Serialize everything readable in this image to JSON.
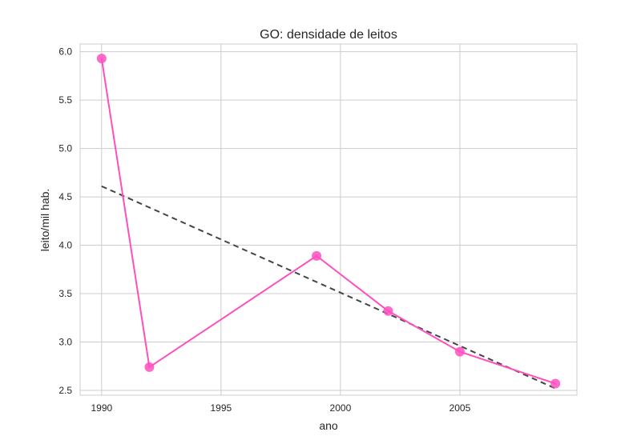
{
  "chart_data": {
    "type": "line",
    "title": "GO: densidade de leitos",
    "xlabel": "ano",
    "ylabel": "leito/mil hab.",
    "xlim": [
      1989.1,
      2009.9
    ],
    "ylim": [
      2.45,
      6.08
    ],
    "x_ticks": [
      1990,
      1995,
      2000,
      2005
    ],
    "y_ticks": [
      2.5,
      3.0,
      3.5,
      4.0,
      4.5,
      5.0,
      5.5,
      6.0
    ],
    "x_tick_labels": [
      "1990",
      "1995",
      "2000",
      "2005"
    ],
    "y_tick_labels": [
      "2.5",
      "3.0",
      "3.5",
      "4.0",
      "4.5",
      "5.0",
      "5.5",
      "6.0"
    ],
    "grid": true,
    "series": [
      {
        "kind": "line+markers",
        "color": "#ff4fbf",
        "x": [
          1990,
          1992,
          1999,
          2002,
          2005,
          2009
        ],
        "y": [
          5.93,
          2.74,
          3.89,
          3.32,
          2.9,
          2.57
        ]
      },
      {
        "kind": "trend-dashed",
        "color": "#444444",
        "x": [
          1990,
          2009
        ],
        "y": [
          4.61,
          2.52
        ]
      }
    ]
  }
}
